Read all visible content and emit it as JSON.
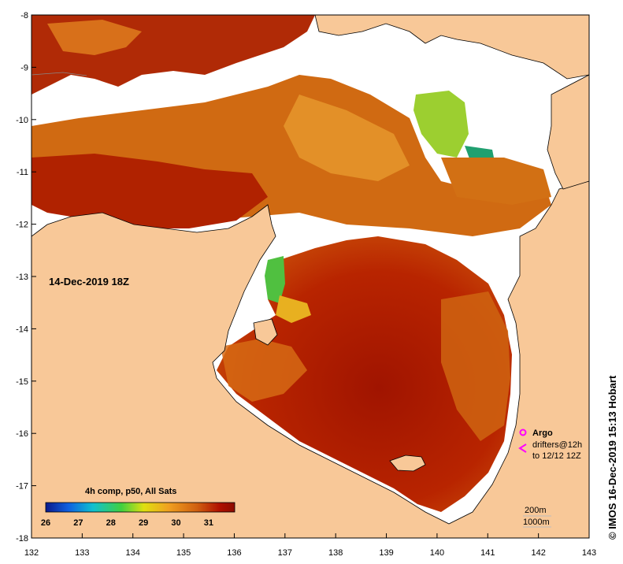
{
  "map": {
    "title": "14-Dec-2019 18Z",
    "credit": "© IMOS 16-Dec-2019 15:13 Hobart",
    "lon_ticks": [
      "132",
      "133",
      "134",
      "135",
      "136",
      "137",
      "138",
      "139",
      "140",
      "141",
      "142",
      "143"
    ],
    "lat_ticks": [
      "-8",
      "-9",
      "-10",
      "-11",
      "-12",
      "-13",
      "-14",
      "-15",
      "-16",
      "-17",
      "-18"
    ],
    "lon_range": [
      132,
      143
    ],
    "lat_range": [
      -18,
      -8
    ],
    "colorbar": {
      "title": "4h comp, p50, All Sats",
      "labels": [
        "26",
        "27",
        "28",
        "29",
        "30",
        "31"
      ],
      "range": [
        26,
        31.8
      ],
      "colors": [
        "#0a1a8c",
        "#1060e0",
        "#10c0d0",
        "#40d040",
        "#e0e010",
        "#f0a020",
        "#d06010",
        "#b01000",
        "#8c0c00"
      ]
    },
    "legend": {
      "argo_label": "Argo",
      "drifters_label": "drifters@12h",
      "drifters_sub": "to 12/12 12Z",
      "argo_color": "#ff00ff"
    },
    "scale": {
      "contour_200": "200m",
      "contour_1000": "1000m"
    },
    "colors": {
      "land": "#f8c898",
      "cloud": "#ffffff",
      "sst_hot": "#a81800",
      "sst_warm": "#d86a10",
      "sst_mid": "#e89a20"
    }
  }
}
